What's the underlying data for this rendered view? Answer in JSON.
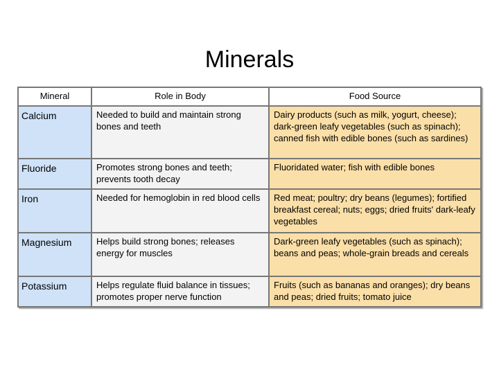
{
  "title": "Minerals",
  "table": {
    "headers": [
      "Mineral",
      "Role in Body",
      "Food Source"
    ],
    "rows": [
      {
        "mineral": "Calcium",
        "role": "Needed to build and maintain strong bones and teeth",
        "food": "Dairy products (such as milk, yogurt, cheese); dark-green leafy vegetables (such as spinach); canned fish with edible bones (such as sardines)"
      },
      {
        "mineral": "Fluoride",
        "role": "Promotes strong bones and teeth; prevents tooth decay",
        "food": "Fluoridated water; fish with edible bones"
      },
      {
        "mineral": "Iron",
        "role": "Needed for hemoglobin in red blood cells",
        "food": "Red meat; poultry; dry beans (legumes); fortified breakfast cereal; nuts; eggs; dried fruits' dark-leafy vegetables"
      },
      {
        "mineral": "Magnesium",
        "role": "Helps build strong bones; releases energy for muscles",
        "food": "Dark-green leafy vegetables (such as spinach); beans and peas; whole-grain breads and cereals"
      },
      {
        "mineral": "Potassium",
        "role": "Helps regulate fluid balance in tissues; promotes proper nerve function",
        "food": "Fruits (such as bananas and oranges); dry beans and peas; dried fruits; tomato juice"
      }
    ]
  },
  "colors": {
    "mineral_column": "#cfe2f7",
    "role_column": "#f3f3f3",
    "food_column": "#fbdfa8",
    "header": "#ffffff",
    "border": "#777777"
  }
}
